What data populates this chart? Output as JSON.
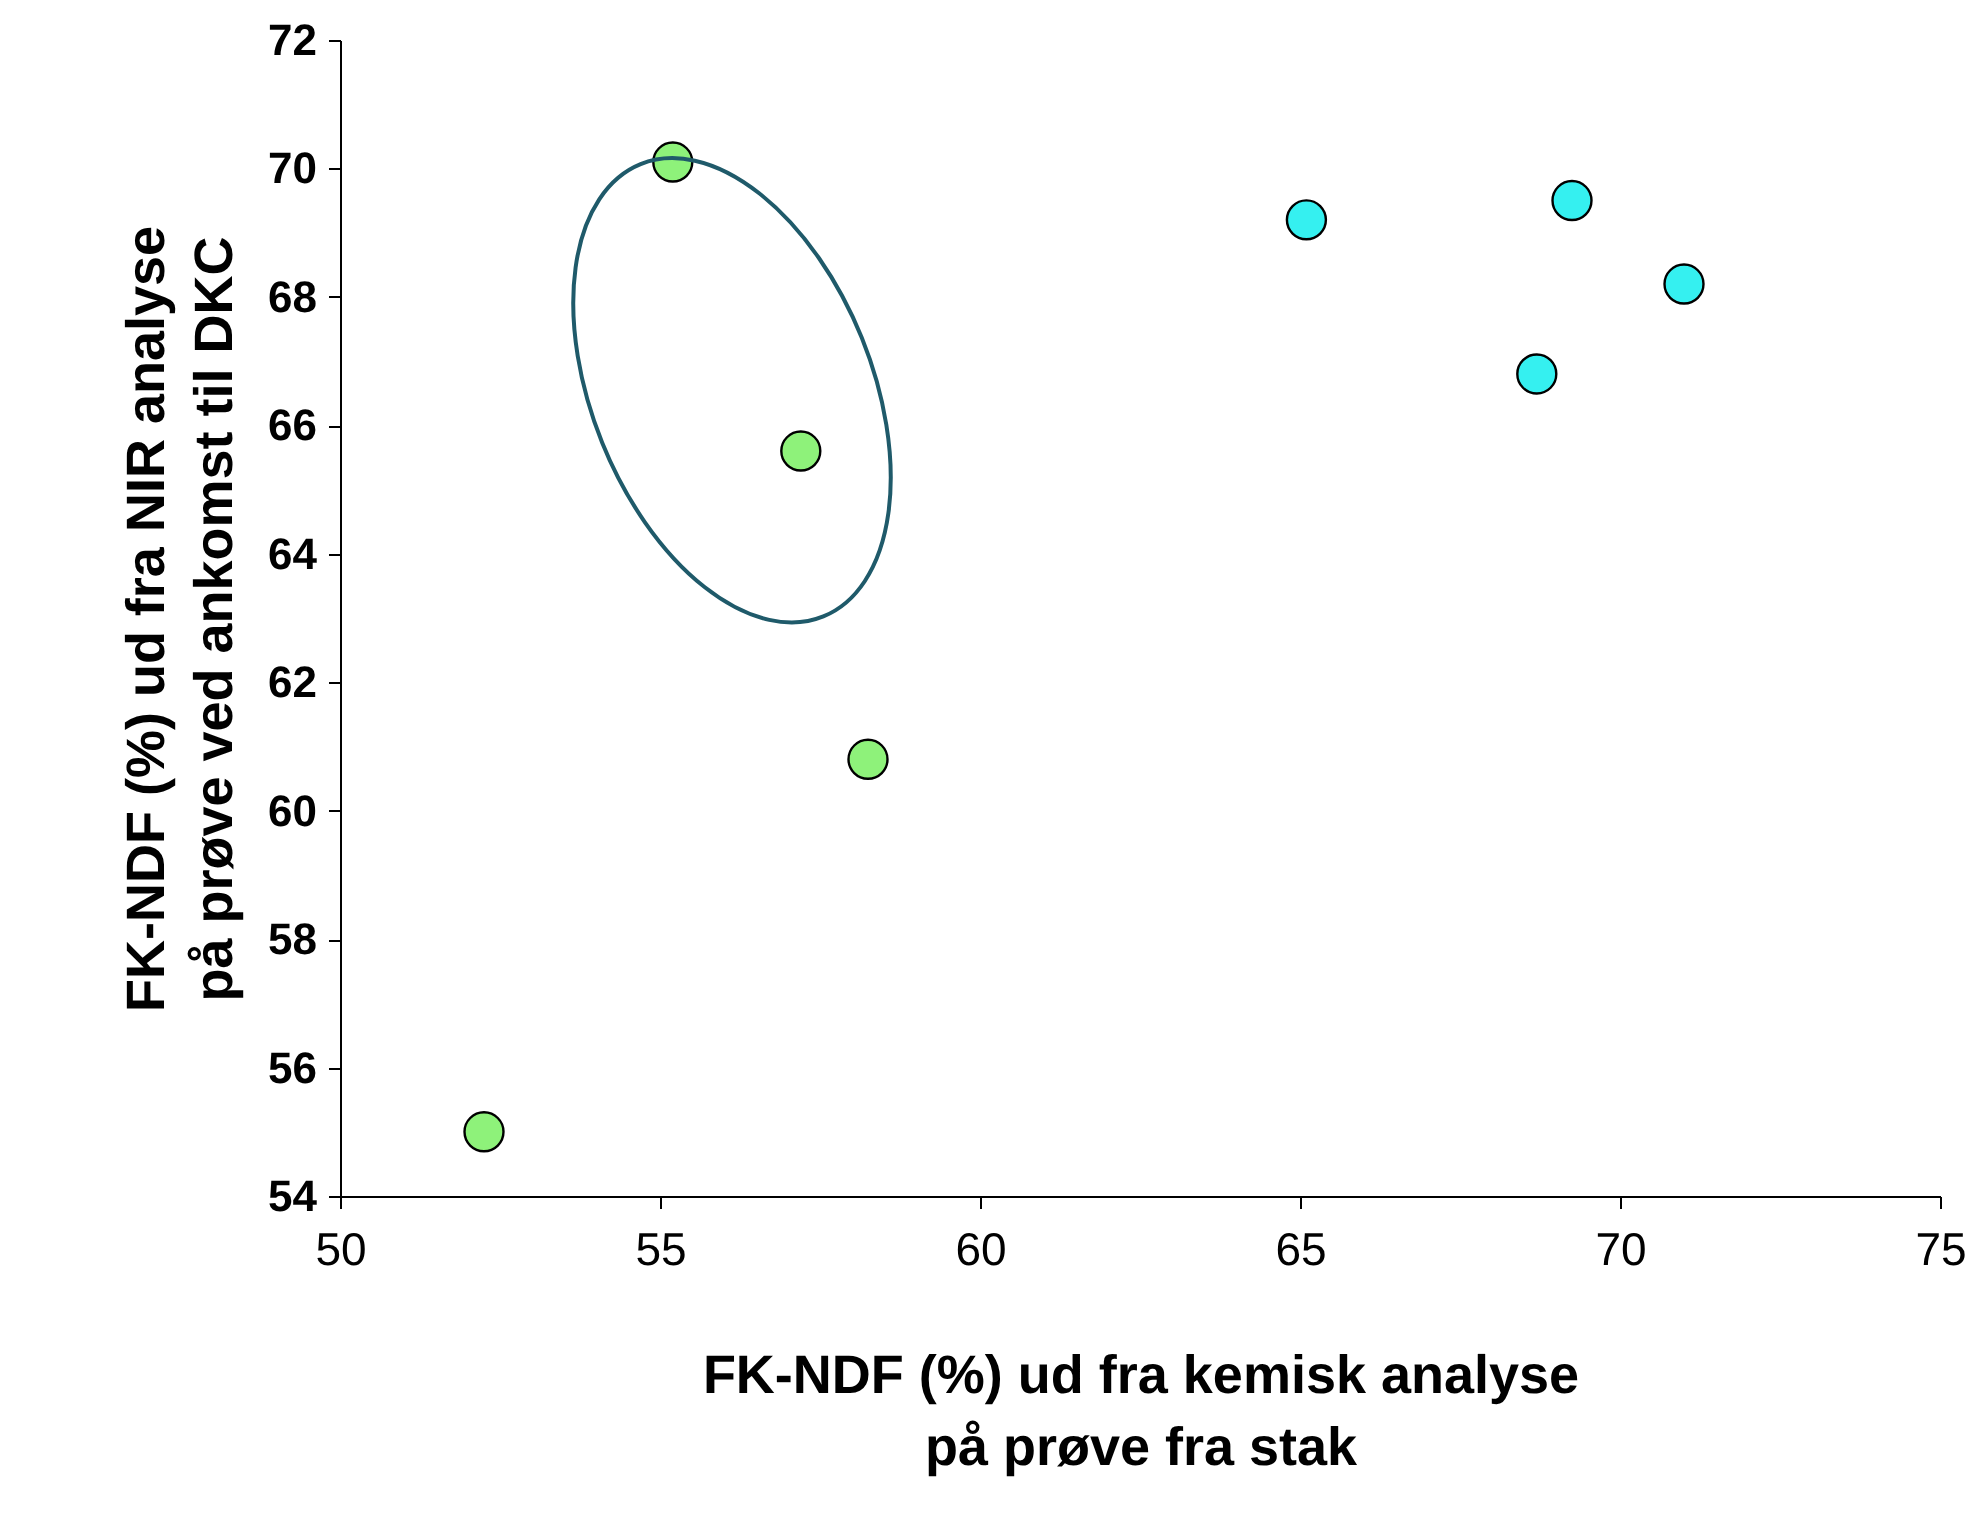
{
  "chart_data": {
    "type": "scatter",
    "xlabel": "FK-NDF (%) ud fra kemisk analyse\npå prøve fra stak",
    "ylabel": "FK-NDF (%) ud fra NIR analyse\npå prøve ved ankomst til DKC",
    "xlim": [
      50,
      75
    ],
    "xticks": [
      50,
      55,
      60,
      65,
      70,
      75
    ],
    "ylim": [
      54,
      72
    ],
    "yticks": [
      54,
      56,
      58,
      60,
      62,
      64,
      66,
      68,
      70,
      72
    ],
    "grid": false,
    "marker": "circle",
    "series": [
      {
        "color": "#8ef27a",
        "x": [
          52.25,
          55.2,
          57.2,
          58.25
        ],
        "values": [
          55.0,
          70.1,
          65.6,
          60.8
        ]
      },
      {
        "color": "#35f0f0",
        "x": [
          65.1,
          68.7,
          69.25,
          71.0
        ],
        "values": [
          69.2,
          66.8,
          69.5,
          68.2
        ]
      }
    ]
  }
}
